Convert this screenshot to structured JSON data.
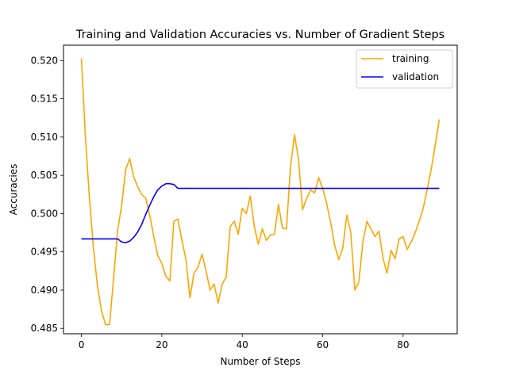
{
  "chart_data": {
    "type": "line",
    "title": "Training and Validation Accuracies vs. Number of Gradient Steps",
    "xlabel": "Number of Steps",
    "ylabel": "Accuracies",
    "xlim": [
      -4.45,
      93.45
    ],
    "ylim": [
      0.4843,
      0.522
    ],
    "xticks": [
      0,
      20,
      40,
      60,
      80
    ],
    "xtick_labels": [
      "0",
      "20",
      "40",
      "60",
      "80"
    ],
    "yticks": [
      0.485,
      0.49,
      0.495,
      0.5,
      0.505,
      0.51,
      0.515,
      0.52
    ],
    "ytick_labels": [
      "0.485",
      "0.490",
      "0.495",
      "0.500",
      "0.505",
      "0.510",
      "0.515",
      "0.520"
    ],
    "grid": false,
    "legend_position": "top-right",
    "series": [
      {
        "name": "training",
        "color": "#ffa500",
        "x": [
          0,
          1,
          2,
          3,
          4,
          5,
          6,
          7,
          8,
          9,
          10,
          11,
          12,
          13,
          14,
          15,
          16,
          17,
          18,
          19,
          20,
          21,
          22,
          23,
          24,
          25,
          26,
          27,
          28,
          29,
          30,
          31,
          32,
          33,
          34,
          35,
          36,
          37,
          38,
          39,
          40,
          41,
          42,
          43,
          44,
          45,
          46,
          47,
          48,
          49,
          50,
          51,
          52,
          53,
          54,
          55,
          56,
          57,
          58,
          59,
          60,
          61,
          62,
          63,
          64,
          65,
          66,
          67,
          68,
          69,
          70,
          71,
          72,
          73,
          74,
          75,
          76,
          77,
          78,
          79,
          80,
          81,
          82,
          83,
          84,
          85,
          86,
          87,
          88,
          89
        ],
        "values": [
          0.5203,
          0.51,
          0.502,
          0.4955,
          0.4905,
          0.4873,
          0.4855,
          0.4855,
          0.4915,
          0.4978,
          0.501,
          0.5057,
          0.5072,
          0.5048,
          0.5035,
          0.5025,
          0.502,
          0.4998,
          0.497,
          0.4945,
          0.4935,
          0.4918,
          0.4912,
          0.499,
          0.4993,
          0.4965,
          0.494,
          0.489,
          0.4922,
          0.493,
          0.4947,
          0.4925,
          0.49,
          0.4908,
          0.4883,
          0.4908,
          0.4917,
          0.4983,
          0.499,
          0.4973,
          0.5007,
          0.5,
          0.5023,
          0.4983,
          0.496,
          0.498,
          0.4965,
          0.4972,
          0.4973,
          0.5012,
          0.4981,
          0.498,
          0.5062,
          0.5103,
          0.507,
          0.5005,
          0.502,
          0.5031,
          0.5027,
          0.5047,
          0.5033,
          0.5013,
          0.4988,
          0.4958,
          0.494,
          0.4955,
          0.4998,
          0.4975,
          0.49,
          0.4911,
          0.4963,
          0.499,
          0.498,
          0.497,
          0.4977,
          0.4942,
          0.4922,
          0.4952,
          0.4941,
          0.4967,
          0.497,
          0.4953,
          0.4963,
          0.4975,
          0.499,
          0.5007,
          0.5032,
          0.5058,
          0.509,
          0.5123
        ]
      },
      {
        "name": "validation",
        "color": "#0000ff",
        "x": [
          0,
          1,
          2,
          3,
          4,
          5,
          6,
          7,
          8,
          9,
          10,
          11,
          12,
          13,
          14,
          15,
          16,
          17,
          18,
          19,
          20,
          21,
          22,
          23,
          24,
          25,
          26,
          27,
          28,
          29,
          30,
          31,
          32,
          33,
          34,
          35,
          36,
          37,
          38,
          39,
          40,
          41,
          42,
          43,
          44,
          45,
          46,
          47,
          48,
          49,
          50,
          51,
          52,
          53,
          54,
          55,
          56,
          57,
          58,
          59,
          60,
          61,
          62,
          63,
          64,
          65,
          66,
          67,
          68,
          69,
          70,
          71,
          72,
          73,
          74,
          75,
          76,
          77,
          78,
          79,
          80,
          81,
          82,
          83,
          84,
          85,
          86,
          87,
          88,
          89
        ],
        "values": [
          0.4967,
          0.4967,
          0.4967,
          0.4967,
          0.4967,
          0.4967,
          0.4967,
          0.4967,
          0.4967,
          0.4967,
          0.4963,
          0.4962,
          0.4964,
          0.4969,
          0.4976,
          0.4986,
          0.4999,
          0.5011,
          0.5022,
          0.5031,
          0.5036,
          0.5039,
          0.5039,
          0.5038,
          0.5033,
          0.5033,
          0.5033,
          0.5033,
          0.5033,
          0.5033,
          0.5033,
          0.5033,
          0.5033,
          0.5033,
          0.5033,
          0.5033,
          0.5033,
          0.5033,
          0.5033,
          0.5033,
          0.5033,
          0.5033,
          0.5033,
          0.5033,
          0.5033,
          0.5033,
          0.5033,
          0.5033,
          0.5033,
          0.5033,
          0.5033,
          0.5033,
          0.5033,
          0.5033,
          0.5033,
          0.5033,
          0.5033,
          0.5033,
          0.5033,
          0.5033,
          0.5033,
          0.5033,
          0.5033,
          0.5033,
          0.5033,
          0.5033,
          0.5033,
          0.5033,
          0.5033,
          0.5033,
          0.5033,
          0.5033,
          0.5033,
          0.5033,
          0.5033,
          0.5033,
          0.5033,
          0.5033,
          0.5033,
          0.5033,
          0.5033,
          0.5033,
          0.5033,
          0.5033,
          0.5033,
          0.5033,
          0.5033,
          0.5033,
          0.5033,
          0.5033
        ]
      }
    ]
  }
}
